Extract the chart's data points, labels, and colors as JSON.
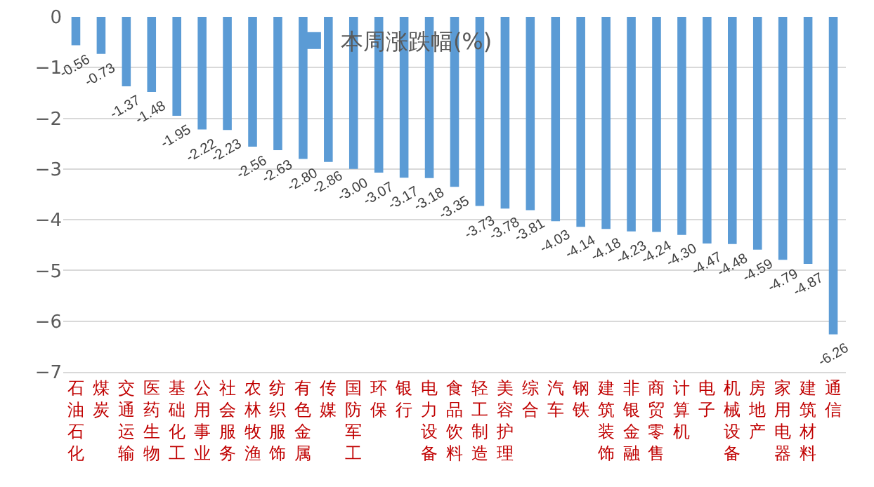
{
  "chart_data": {
    "type": "bar",
    "categories": [
      "石油石化",
      "煤炭",
      "交通运输",
      "医药生物",
      "基础化工",
      "公用事业",
      "社会服务",
      "农林牧渔",
      "纺织服饰",
      "有色金属",
      "传媒",
      "国防军工",
      "环保",
      "银行",
      "电力设备",
      "食品饮料",
      "轻工制造",
      "美容护理",
      "综合",
      "汽车",
      "钢铁",
      "建筑装饰",
      "非银金融",
      "商贸零售",
      "计算机",
      "电子",
      "机械设备",
      "房地产",
      "家用电器",
      "建筑材料",
      "通信"
    ],
    "series": [
      {
        "name": "本周涨跌幅(%)",
        "color": "#5b9bd5",
        "values": [
          -0.56,
          -0.73,
          -1.37,
          -1.48,
          -1.95,
          -2.22,
          -2.23,
          -2.56,
          -2.63,
          -2.8,
          -2.86,
          -3.0,
          -3.07,
          -3.17,
          -3.18,
          -3.35,
          -3.73,
          -3.78,
          -3.81,
          -4.03,
          -4.14,
          -4.18,
          -4.23,
          -4.24,
          -4.3,
          -4.47,
          -4.48,
          -4.59,
          -4.79,
          -4.87,
          -6.26
        ],
        "value_labels": [
          "-0.56",
          "-0.73",
          "-1.37",
          "-1.48",
          "-1.95",
          "-2.22",
          "-2.23",
          "-2.56",
          "-2.63",
          "-2.80",
          "-2.86",
          "-3.00",
          "-3.07",
          "-3.17",
          "-3.18",
          "-3.35",
          "-3.73",
          "-3.78",
          "-3.81",
          "-4.03",
          "-4.14",
          "-4.18",
          "-4.23",
          "-4.24",
          "-4.30",
          "-4.47",
          "-4.48",
          "-4.59",
          "-4.79",
          "-4.87",
          "-6.26"
        ]
      }
    ],
    "ylim": [
      -7,
      0
    ],
    "yticks": [
      -7,
      -6,
      -5,
      -4,
      -3,
      -2,
      -1,
      0
    ],
    "grid": "y",
    "legend": "top"
  }
}
